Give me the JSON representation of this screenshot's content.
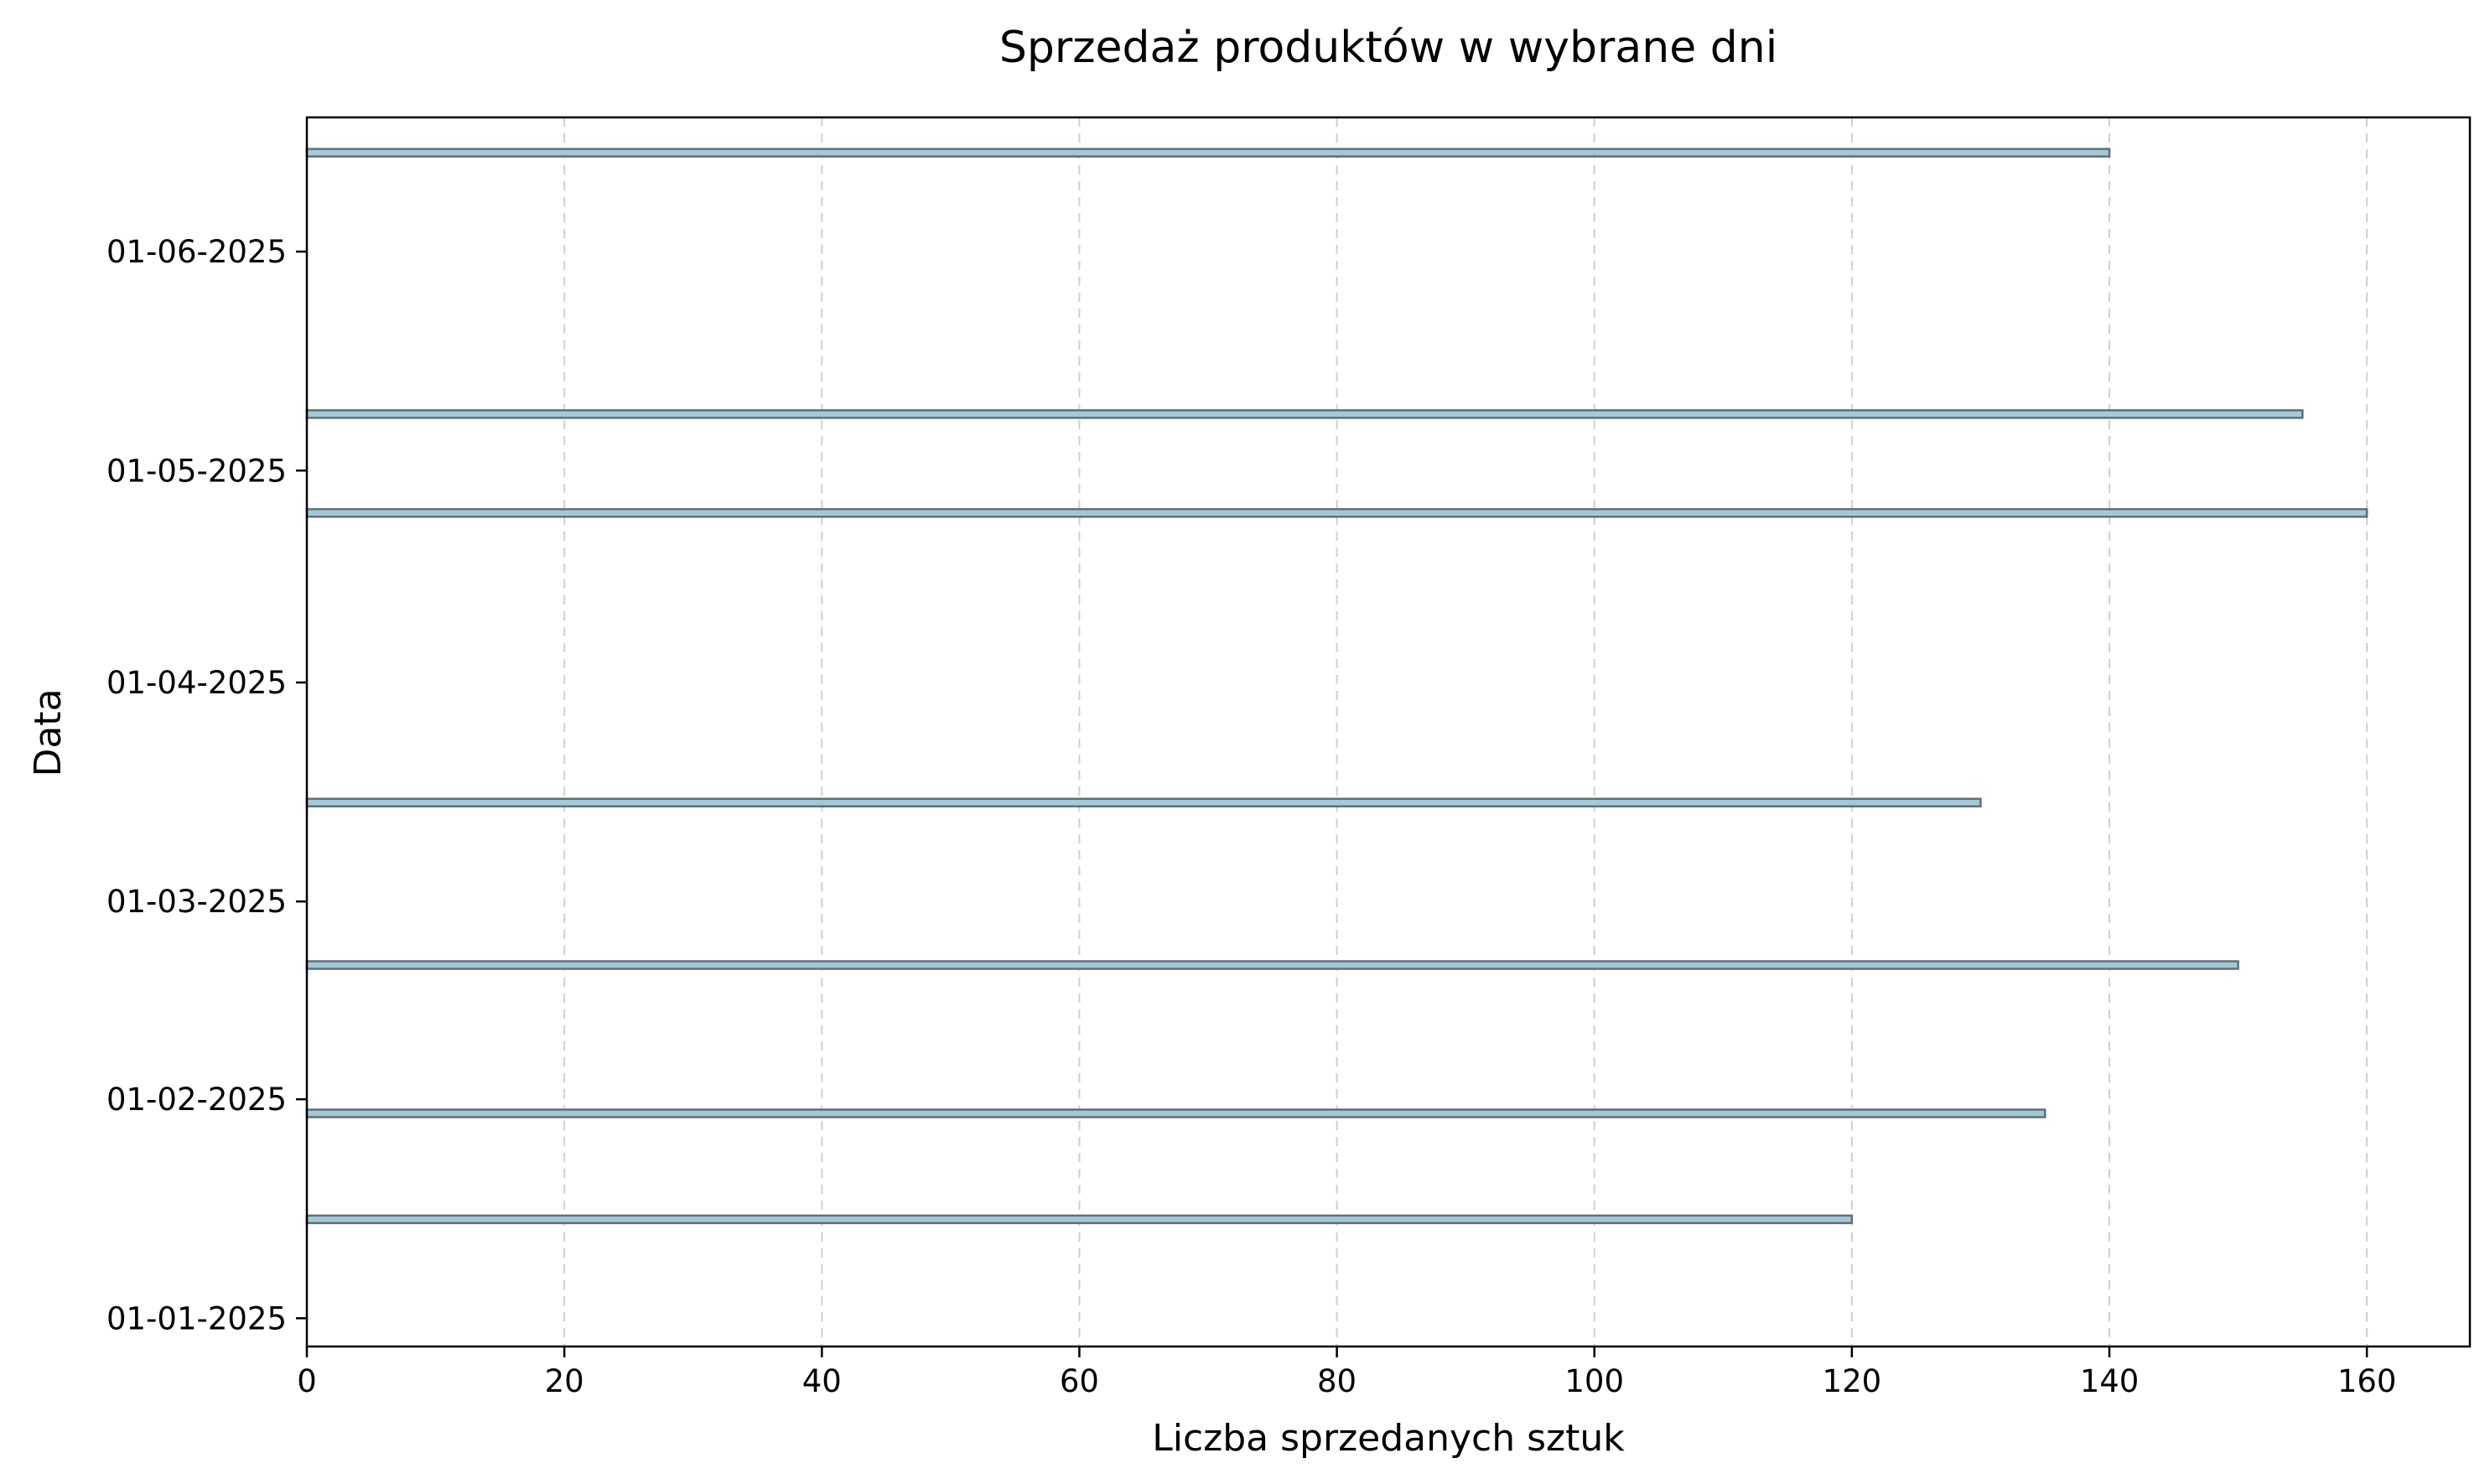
{
  "chart_data": {
    "type": "bar",
    "orientation": "horizontal",
    "title": "Sprzedaż produktów w wybrane dni",
    "xlabel": "Liczba sprzedanych sztuk",
    "ylabel": "Data",
    "xlim": [
      0,
      168
    ],
    "ylim": [
      "2024-12-28",
      "2025-06-20"
    ],
    "xticks": [
      0,
      20,
      40,
      60,
      80,
      100,
      120,
      140,
      160
    ],
    "yticks": [
      "2025-01-01",
      "2025-02-01",
      "2025-03-01",
      "2025-04-01",
      "2025-05-01",
      "2025-06-01"
    ],
    "ytick_labels": [
      "01-01-2025",
      "01-02-2025",
      "01-03-2025",
      "01-04-2025",
      "01-05-2025",
      "01-06-2025"
    ],
    "grid": "x-dashed",
    "bar_color": "#a3c9d6",
    "bar_edge_color": "#5f6f7a",
    "points": [
      {
        "date": "2025-01-15",
        "value": 120
      },
      {
        "date": "2025-01-30",
        "value": 135
      },
      {
        "date": "2025-02-20",
        "value": 150
      },
      {
        "date": "2025-03-15",
        "value": 130
      },
      {
        "date": "2025-04-25",
        "value": 160
      },
      {
        "date": "2025-05-09",
        "value": 155
      },
      {
        "date": "2025-06-15",
        "value": 140
      }
    ]
  }
}
